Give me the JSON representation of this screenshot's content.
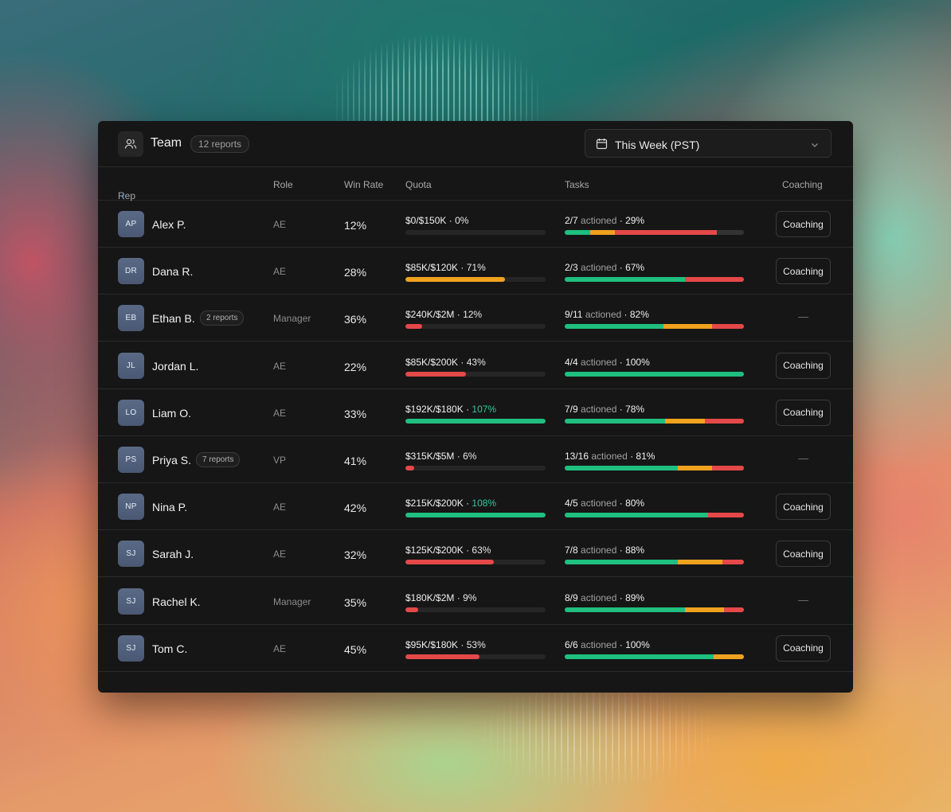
{
  "header": {
    "title": "Team",
    "reports_badge": "12 reports",
    "period_label": "This Week (PST)"
  },
  "columns": {
    "rep": "Rep",
    "rep_sort": "↑",
    "role": "Role",
    "win_rate": "Win Rate",
    "quota": "Quota",
    "tasks": "Tasks",
    "coaching": "Coaching"
  },
  "colors": {
    "green": "#1fbf7f",
    "amber": "#f0a21e",
    "red": "#e54848",
    "accent": "#3aa0ff"
  },
  "rows": [
    {
      "initials": "AP",
      "name": "Alex P.",
      "badge": "",
      "role": "AE",
      "win_rate": "12%",
      "quota_amount": "$0/$150K",
      "quota_pct": "0%",
      "quota_fraction": 0,
      "quota_color": "red",
      "tasks_count": "2/7",
      "tasks_label": "actioned",
      "tasks_pct": "29%",
      "segments": [
        {
          "color": "green",
          "share": 0.14
        },
        {
          "color": "amber",
          "share": 0.14
        },
        {
          "color": "red",
          "share": 0.57
        },
        {
          "color": "track",
          "share": 0.15
        }
      ],
      "coaching": "Coaching"
    },
    {
      "initials": "DR",
      "name": "Dana R.",
      "badge": "",
      "role": "AE",
      "win_rate": "28%",
      "quota_amount": "$85K/$120K",
      "quota_pct": "71%",
      "quota_fraction": 0.71,
      "quota_color": "amber",
      "tasks_count": "2/3",
      "tasks_label": "actioned",
      "tasks_pct": "67%",
      "segments": [
        {
          "color": "green",
          "share": 0.67
        },
        {
          "color": "red",
          "share": 0.33
        }
      ],
      "coaching": "Coaching"
    },
    {
      "initials": "EB",
      "name": "Ethan B.",
      "badge": "2 reports",
      "role": "Manager",
      "win_rate": "36%",
      "quota_amount": "$240K/$2M",
      "quota_pct": "12%",
      "quota_fraction": 0.12,
      "quota_color": "red",
      "tasks_count": "9/11",
      "tasks_label": "actioned",
      "tasks_pct": "82%",
      "segments": [
        {
          "color": "green",
          "share": 0.55
        },
        {
          "color": "amber",
          "share": 0.27
        },
        {
          "color": "red",
          "share": 0.18
        }
      ],
      "coaching": "—"
    },
    {
      "initials": "JL",
      "name": "Jordan L.",
      "badge": "",
      "role": "AE",
      "win_rate": "22%",
      "quota_amount": "$85K/$200K",
      "quota_pct": "43%",
      "quota_fraction": 0.43,
      "quota_color": "red",
      "tasks_count": "4/4",
      "tasks_label": "actioned",
      "tasks_pct": "100%",
      "segments": [
        {
          "color": "green",
          "share": 1
        }
      ],
      "coaching": "Coaching"
    },
    {
      "initials": "LO",
      "name": "Liam O.",
      "badge": "",
      "role": "AE",
      "win_rate": "33%",
      "quota_amount": "$192K/$180K",
      "quota_pct": "107%",
      "quota_fraction": 1,
      "quota_color": "green",
      "quota_over": true,
      "tasks_count": "7/9",
      "tasks_label": "actioned",
      "tasks_pct": "78%",
      "segments": [
        {
          "color": "green",
          "share": 0.56
        },
        {
          "color": "amber",
          "share": 0.22
        },
        {
          "color": "red",
          "share": 0.22
        }
      ],
      "coaching": "Coaching"
    },
    {
      "initials": "PS",
      "name": "Priya S.",
      "badge": "7 reports",
      "role": "VP",
      "win_rate": "41%",
      "quota_amount": "$315K/$5M",
      "quota_pct": "6%",
      "quota_fraction": 0.06,
      "quota_color": "red",
      "tasks_count": "13/16",
      "tasks_label": "actioned",
      "tasks_pct": "81%",
      "segments": [
        {
          "color": "green",
          "share": 0.63
        },
        {
          "color": "amber",
          "share": 0.19
        },
        {
          "color": "red",
          "share": 0.18
        }
      ],
      "coaching": "—"
    },
    {
      "initials": "NP",
      "name": "Nina P.",
      "badge": "",
      "role": "AE",
      "win_rate": "42%",
      "quota_amount": "$215K/$200K",
      "quota_pct": "108%",
      "quota_fraction": 1,
      "quota_color": "green",
      "quota_over": true,
      "tasks_count": "4/5",
      "tasks_label": "actioned",
      "tasks_pct": "80%",
      "segments": [
        {
          "color": "green",
          "share": 0.8
        },
        {
          "color": "red",
          "share": 0.2
        }
      ],
      "coaching": "Coaching"
    },
    {
      "initials": "SJ",
      "name": "Sarah J.",
      "badge": "",
      "role": "AE",
      "win_rate": "32%",
      "quota_amount": "$125K/$200K",
      "quota_pct": "63%",
      "quota_fraction": 0.63,
      "quota_color": "red",
      "tasks_count": "7/8",
      "tasks_label": "actioned",
      "tasks_pct": "88%",
      "segments": [
        {
          "color": "green",
          "share": 0.63
        },
        {
          "color": "amber",
          "share": 0.25
        },
        {
          "color": "red",
          "share": 0.12
        }
      ],
      "coaching": "Coaching"
    },
    {
      "initials": "SJ",
      "name": "Rachel K.",
      "badge": "",
      "role": "Manager",
      "win_rate": "35%",
      "quota_amount": "$180K/$2M",
      "quota_pct": "9%",
      "quota_fraction": 0.09,
      "quota_color": "red",
      "tasks_count": "8/9",
      "tasks_label": "actioned",
      "tasks_pct": "89%",
      "segments": [
        {
          "color": "green",
          "share": 0.67
        },
        {
          "color": "amber",
          "share": 0.22
        },
        {
          "color": "red",
          "share": 0.11
        }
      ],
      "coaching": "—"
    },
    {
      "initials": "SJ",
      "name": "Tom C.",
      "badge": "",
      "role": "AE",
      "win_rate": "45%",
      "quota_amount": "$95K/$180K",
      "quota_pct": "53%",
      "quota_fraction": 0.53,
      "quota_color": "red",
      "tasks_count": "6/6",
      "tasks_label": "actioned",
      "tasks_pct": "100%",
      "segments": [
        {
          "color": "green",
          "share": 0.83
        },
        {
          "color": "amber",
          "share": 0.17
        }
      ],
      "coaching": "Coaching"
    }
  ]
}
